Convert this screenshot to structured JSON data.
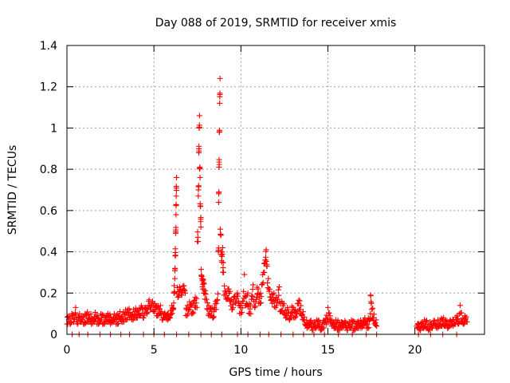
{
  "chart_data": {
    "type": "scatter",
    "title": "Day 088 of 2019, SRMTID for receiver xmis",
    "xlabel": "GPS time / hours",
    "ylabel": "SRMTID / TECUs",
    "xlim": [
      0,
      24
    ],
    "ylim": [
      0,
      1.4
    ],
    "grid": true,
    "x_ticks": [
      0,
      5,
      10,
      15,
      20
    ],
    "x_tick_labels": [
      "0",
      "5",
      "10",
      "15",
      "20"
    ],
    "y_ticks": [
      0,
      0.2,
      0.4,
      0.6,
      0.8,
      1.0,
      1.2,
      1.4
    ],
    "y_tick_labels": [
      "0",
      "0.2",
      "0.4",
      "0.6",
      "0.8",
      "1",
      "1.2",
      "1.4"
    ],
    "marker": "+",
    "marker_color": "#ff0000",
    "series": [
      {
        "name": "SRMTID",
        "points": [
          [
            0.0,
            0.05
          ],
          [
            0.1,
            0.07
          ],
          [
            0.2,
            0.05
          ],
          [
            0.3,
            0.09
          ],
          [
            0.4,
            0.06
          ],
          [
            0.5,
            0.13
          ],
          [
            0.6,
            0.05
          ],
          [
            0.7,
            0.08
          ],
          [
            0.8,
            0.06
          ],
          [
            0.9,
            0.07
          ],
          [
            1.0,
            0.05
          ],
          [
            1.1,
            0.09
          ],
          [
            1.2,
            0.06
          ],
          [
            1.3,
            0.08
          ],
          [
            1.4,
            0.05
          ],
          [
            1.5,
            0.07
          ],
          [
            1.6,
            0.06
          ],
          [
            1.7,
            0.09
          ],
          [
            1.8,
            0.05
          ],
          [
            1.9,
            0.06
          ],
          [
            2.0,
            0.08
          ],
          [
            2.1,
            0.05
          ],
          [
            2.2,
            0.07
          ],
          [
            2.3,
            0.06
          ],
          [
            2.4,
            0.09
          ],
          [
            2.5,
            0.05
          ],
          [
            2.6,
            0.07
          ],
          [
            2.7,
            0.06
          ],
          [
            2.8,
            0.08
          ],
          [
            2.9,
            0.05
          ],
          [
            3.0,
            0.09
          ],
          [
            3.1,
            0.07
          ],
          [
            3.2,
            0.06
          ],
          [
            3.3,
            0.1
          ],
          [
            3.4,
            0.07
          ],
          [
            3.5,
            0.12
          ],
          [
            3.6,
            0.08
          ],
          [
            3.7,
            0.09
          ],
          [
            3.8,
            0.07
          ],
          [
            3.9,
            0.11
          ],
          [
            4.0,
            0.08
          ],
          [
            4.1,
            0.1
          ],
          [
            4.2,
            0.09
          ],
          [
            4.3,
            0.13
          ],
          [
            4.4,
            0.08
          ],
          [
            4.5,
            0.12
          ],
          [
            4.6,
            0.1
          ],
          [
            4.7,
            0.16
          ],
          [
            4.8,
            0.12
          ],
          [
            4.9,
            0.14
          ],
          [
            5.0,
            0.11
          ],
          [
            5.1,
            0.13
          ],
          [
            5.2,
            0.09
          ],
          [
            5.3,
            0.12
          ],
          [
            5.4,
            0.1
          ],
          [
            5.5,
            0.07
          ],
          [
            5.6,
            0.08
          ],
          [
            5.7,
            0.09
          ],
          [
            5.8,
            0.07
          ],
          [
            5.9,
            0.08
          ],
          [
            6.0,
            0.1
          ],
          [
            6.1,
            0.12
          ],
          [
            6.15,
            0.2
          ],
          [
            6.2,
            0.27
          ],
          [
            6.22,
            0.38
          ],
          [
            6.25,
            0.49
          ],
          [
            6.27,
            0.58
          ],
          [
            6.28,
            0.67
          ],
          [
            6.3,
            0.76
          ],
          [
            6.4,
            0.18
          ],
          [
            6.5,
            0.21
          ],
          [
            6.6,
            0.19
          ],
          [
            6.7,
            0.22
          ],
          [
            6.8,
            0.2
          ],
          [
            6.9,
            0.09
          ],
          [
            7.0,
            0.12
          ],
          [
            7.1,
            0.14
          ],
          [
            7.2,
            0.1
          ],
          [
            7.3,
            0.16
          ],
          [
            7.4,
            0.13
          ],
          [
            7.5,
            0.45
          ],
          [
            7.55,
            0.67
          ],
          [
            7.58,
            0.88
          ],
          [
            7.6,
            1.0
          ],
          [
            7.62,
            1.06
          ],
          [
            7.65,
            0.76
          ],
          [
            7.68,
            0.62
          ],
          [
            7.7,
            0.52
          ],
          [
            7.75,
            0.28
          ],
          [
            7.8,
            0.22
          ],
          [
            7.85,
            0.25
          ],
          [
            7.9,
            0.2
          ],
          [
            8.0,
            0.17
          ],
          [
            8.1,
            0.12
          ],
          [
            8.2,
            0.09
          ],
          [
            8.3,
            0.11
          ],
          [
            8.4,
            0.08
          ],
          [
            8.5,
            0.12
          ],
          [
            8.6,
            0.15
          ],
          [
            8.7,
            0.4
          ],
          [
            8.72,
            0.64
          ],
          [
            8.74,
            0.81
          ],
          [
            8.76,
            0.98
          ],
          [
            8.78,
            1.12
          ],
          [
            8.8,
            1.24
          ],
          [
            8.85,
            0.48
          ],
          [
            8.9,
            0.35
          ],
          [
            8.95,
            0.42
          ],
          [
            9.0,
            0.3
          ],
          [
            9.1,
            0.19
          ],
          [
            9.2,
            0.17
          ],
          [
            9.3,
            0.22
          ],
          [
            9.4,
            0.16
          ],
          [
            9.5,
            0.12
          ],
          [
            9.6,
            0.18
          ],
          [
            9.7,
            0.15
          ],
          [
            9.8,
            0.2
          ],
          [
            9.9,
            0.14
          ],
          [
            10.0,
            0.1
          ],
          [
            10.1,
            0.16
          ],
          [
            10.2,
            0.29
          ],
          [
            10.3,
            0.14
          ],
          [
            10.4,
            0.2
          ],
          [
            10.5,
            0.1
          ],
          [
            10.6,
            0.17
          ],
          [
            10.7,
            0.24
          ],
          [
            10.8,
            0.13
          ],
          [
            10.9,
            0.18
          ],
          [
            11.0,
            0.22
          ],
          [
            11.1,
            0.15
          ],
          [
            11.2,
            0.24
          ],
          [
            11.3,
            0.3
          ],
          [
            11.4,
            0.36
          ],
          [
            11.45,
            0.41
          ],
          [
            11.5,
            0.33
          ],
          [
            11.6,
            0.22
          ],
          [
            11.7,
            0.18
          ],
          [
            11.8,
            0.15
          ],
          [
            11.9,
            0.2
          ],
          [
            12.0,
            0.13
          ],
          [
            12.1,
            0.17
          ],
          [
            12.2,
            0.23
          ],
          [
            12.3,
            0.11
          ],
          [
            12.4,
            0.15
          ],
          [
            12.5,
            0.1
          ],
          [
            12.6,
            0.08
          ],
          [
            12.7,
            0.12
          ],
          [
            12.8,
            0.07
          ],
          [
            12.9,
            0.09
          ],
          [
            13.0,
            0.13
          ],
          [
            13.1,
            0.08
          ],
          [
            13.2,
            0.1
          ],
          [
            13.3,
            0.15
          ],
          [
            13.4,
            0.12
          ],
          [
            13.5,
            0.09
          ],
          [
            13.6,
            0.07
          ],
          [
            13.7,
            0.05
          ],
          [
            13.8,
            0.03
          ],
          [
            13.9,
            0.04
          ],
          [
            14.0,
            0.05
          ],
          [
            14.1,
            0.02
          ],
          [
            14.2,
            0.04
          ],
          [
            14.3,
            0.03
          ],
          [
            14.4,
            0.05
          ],
          [
            14.5,
            0.04
          ],
          [
            14.6,
            0.02
          ],
          [
            14.7,
            0.03
          ],
          [
            14.8,
            0.06
          ],
          [
            14.9,
            0.05
          ],
          [
            15.0,
            0.13
          ],
          [
            15.1,
            0.07
          ],
          [
            15.2,
            0.05
          ],
          [
            15.3,
            0.04
          ],
          [
            15.4,
            0.03
          ],
          [
            15.5,
            0.05
          ],
          [
            15.6,
            0.02
          ],
          [
            15.7,
            0.04
          ],
          [
            15.8,
            0.03
          ],
          [
            15.9,
            0.05
          ],
          [
            16.0,
            0.04
          ],
          [
            16.1,
            0.02
          ],
          [
            16.2,
            0.04
          ],
          [
            16.3,
            0.03
          ],
          [
            16.4,
            0.05
          ],
          [
            16.5,
            0.02
          ],
          [
            16.6,
            0.04
          ],
          [
            16.7,
            0.03
          ],
          [
            16.8,
            0.05
          ],
          [
            16.9,
            0.03
          ],
          [
            17.0,
            0.04
          ],
          [
            17.1,
            0.06
          ],
          [
            17.2,
            0.05
          ],
          [
            17.3,
            0.03
          ],
          [
            17.4,
            0.07
          ],
          [
            17.45,
            0.19
          ],
          [
            17.5,
            0.15
          ],
          [
            17.6,
            0.08
          ],
          [
            17.7,
            0.05
          ],
          [
            17.8,
            0.04
          ],
          [
            20.1,
            0.04
          ],
          [
            20.2,
            0.03
          ],
          [
            20.3,
            0.02
          ],
          [
            20.4,
            0.04
          ],
          [
            20.5,
            0.03
          ],
          [
            20.6,
            0.05
          ],
          [
            20.7,
            0.03
          ],
          [
            20.8,
            0.02
          ],
          [
            20.9,
            0.04
          ],
          [
            21.0,
            0.03
          ],
          [
            21.1,
            0.05
          ],
          [
            21.2,
            0.04
          ],
          [
            21.3,
            0.03
          ],
          [
            21.4,
            0.05
          ],
          [
            21.5,
            0.04
          ],
          [
            21.6,
            0.06
          ],
          [
            21.7,
            0.04
          ],
          [
            21.8,
            0.05
          ],
          [
            21.9,
            0.03
          ],
          [
            22.0,
            0.04
          ],
          [
            22.1,
            0.06
          ],
          [
            22.2,
            0.04
          ],
          [
            22.3,
            0.05
          ],
          [
            22.4,
            0.07
          ],
          [
            22.5,
            0.05
          ],
          [
            22.6,
            0.14
          ],
          [
            22.7,
            0.06
          ],
          [
            22.8,
            0.05
          ],
          [
            22.9,
            0.07
          ],
          [
            23.0,
            0.06
          ]
        ]
      }
    ],
    "zero_points_x": [
      0.3,
      0.7,
      1.2,
      1.9,
      2.5,
      3.1,
      3.6,
      4.4,
      5.0,
      5.6,
      6.3,
      7.0,
      7.7,
      8.3,
      8.9,
      9.8,
      10.4,
      11.1,
      11.6,
      12.3,
      13.0,
      13.6,
      14.2,
      14.8,
      15.6,
      16.4,
      17.2,
      17.8,
      20.2,
      20.9,
      21.6,
      22.4
    ]
  }
}
